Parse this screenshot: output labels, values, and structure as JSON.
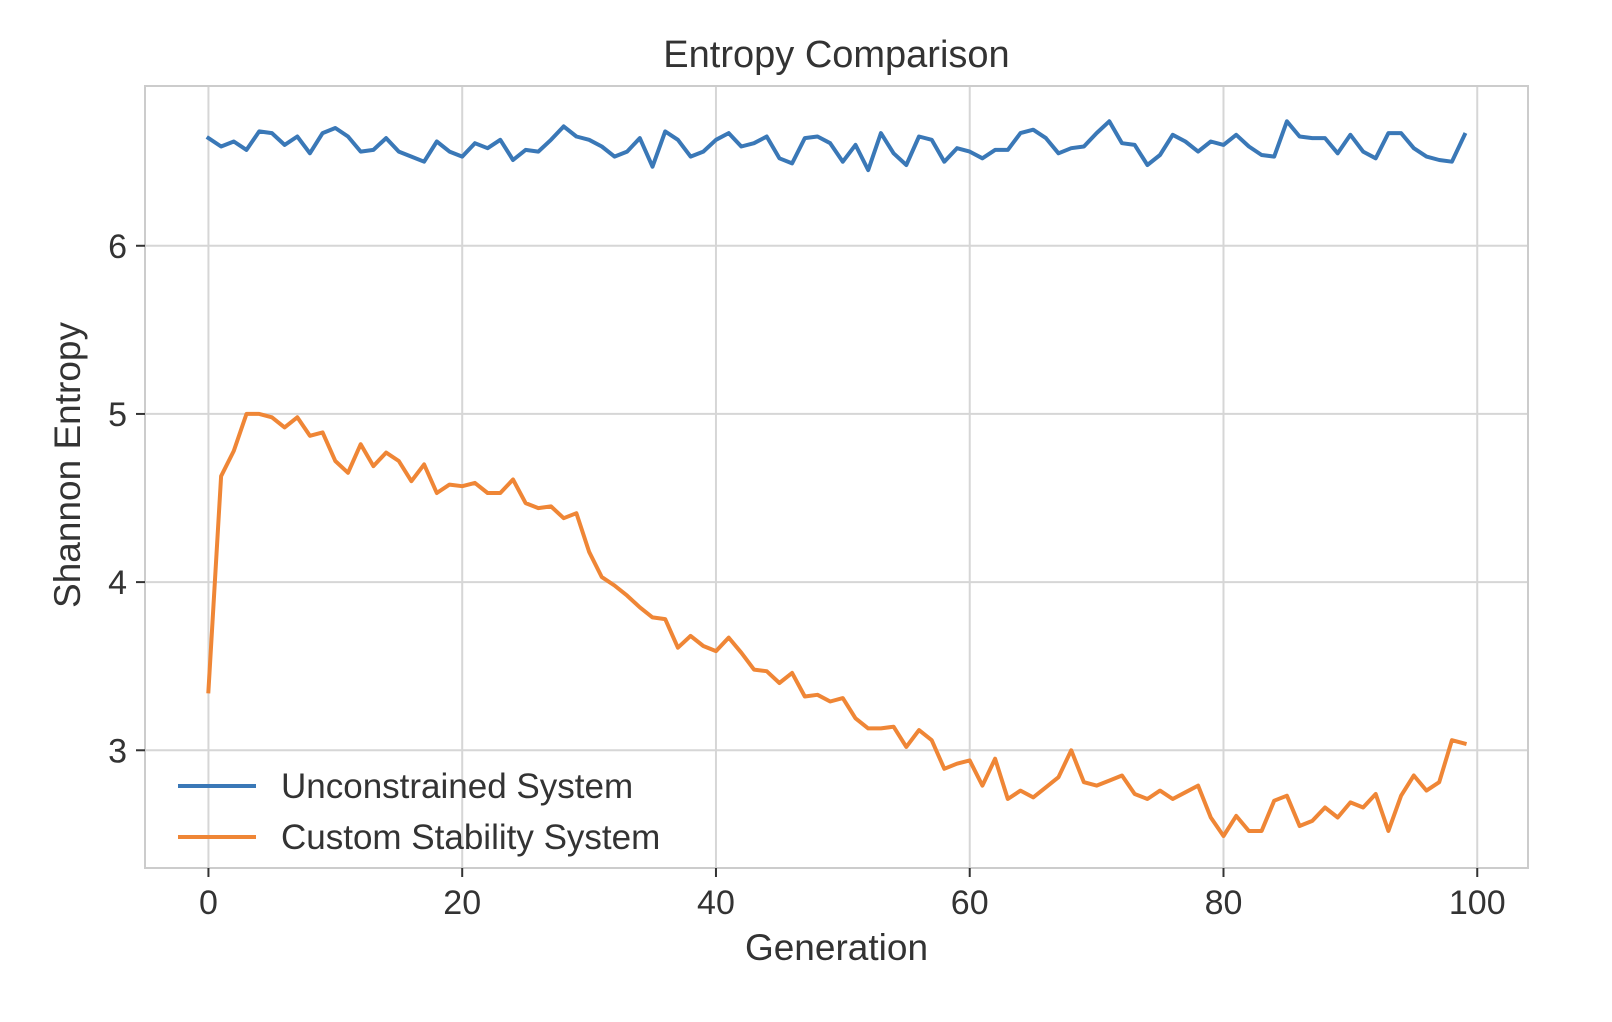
{
  "chart_data": {
    "type": "line",
    "title": "Entropy Comparison",
    "xlabel": "Generation",
    "ylabel": "Shannon Entropy",
    "xlim": [
      -5,
      104
    ],
    "ylim": [
      2.3,
      6.95
    ],
    "xticks": [
      0,
      20,
      40,
      60,
      80,
      100
    ],
    "yticks": [
      3,
      4,
      5,
      6
    ],
    "grid": true,
    "legend_position": "bottom-left",
    "series": [
      {
        "name": "Unconstrained System",
        "color": "#3a78b7",
        "x": [
          0,
          1,
          2,
          3,
          4,
          5,
          6,
          7,
          8,
          9,
          10,
          11,
          12,
          13,
          14,
          15,
          16,
          17,
          18,
          19,
          20,
          21,
          22,
          23,
          24,
          25,
          26,
          27,
          28,
          29,
          30,
          31,
          32,
          33,
          34,
          35,
          36,
          37,
          38,
          39,
          40,
          41,
          42,
          43,
          44,
          45,
          46,
          47,
          48,
          49,
          50,
          51,
          52,
          53,
          54,
          55,
          56,
          57,
          58,
          59,
          60,
          61,
          62,
          63,
          64,
          65,
          66,
          67,
          68,
          69,
          70,
          71,
          72,
          73,
          74,
          75,
          76,
          77,
          78,
          79,
          80,
          81,
          82,
          83,
          84,
          85,
          86,
          87,
          88,
          89,
          90,
          91,
          92,
          93,
          94,
          95,
          96,
          97,
          98,
          99
        ],
        "values": [
          6.64,
          6.59,
          6.62,
          6.57,
          6.68,
          6.67,
          6.6,
          6.65,
          6.55,
          6.67,
          6.7,
          6.65,
          6.56,
          6.57,
          6.64,
          6.56,
          6.53,
          6.5,
          6.62,
          6.56,
          6.53,
          6.61,
          6.58,
          6.63,
          6.51,
          6.57,
          6.56,
          6.63,
          6.71,
          6.65,
          6.63,
          6.59,
          6.53,
          6.56,
          6.64,
          6.47,
          6.68,
          6.63,
          6.53,
          6.56,
          6.63,
          6.67,
          6.59,
          6.61,
          6.65,
          6.52,
          6.49,
          6.64,
          6.65,
          6.61,
          6.5,
          6.6,
          6.45,
          6.67,
          6.55,
          6.48,
          6.65,
          6.63,
          6.5,
          6.58,
          6.56,
          6.52,
          6.57,
          6.57,
          6.67,
          6.69,
          6.64,
          6.55,
          6.58,
          6.59,
          6.67,
          6.74,
          6.61,
          6.6,
          6.48,
          6.54,
          6.66,
          6.62,
          6.56,
          6.62,
          6.6,
          6.66,
          6.59,
          6.54,
          6.53,
          6.74,
          6.65,
          6.64,
          6.64,
          6.55,
          6.66,
          6.56,
          6.52,
          6.67,
          6.67,
          6.58,
          6.53,
          6.51,
          6.5,
          6.66
        ]
      },
      {
        "name": "Custom Stability System",
        "color": "#ef8636",
        "x": [
          0,
          1,
          2,
          3,
          4,
          5,
          6,
          7,
          8,
          9,
          10,
          11,
          12,
          13,
          14,
          15,
          16,
          17,
          18,
          19,
          20,
          21,
          22,
          23,
          24,
          25,
          26,
          27,
          28,
          29,
          30,
          31,
          32,
          33,
          34,
          35,
          36,
          37,
          38,
          39,
          40,
          41,
          42,
          43,
          44,
          45,
          46,
          47,
          48,
          49,
          50,
          51,
          52,
          53,
          54,
          55,
          56,
          57,
          58,
          59,
          60,
          61,
          62,
          63,
          64,
          65,
          66,
          67,
          68,
          69,
          70,
          71,
          72,
          73,
          74,
          75,
          76,
          77,
          78,
          79,
          80,
          81,
          82,
          83,
          84,
          85,
          86,
          87,
          88,
          89,
          90,
          91,
          92,
          93,
          94,
          95,
          96,
          97,
          98,
          99
        ],
        "values": [
          3.35,
          4.63,
          4.78,
          5.0,
          5.0,
          4.98,
          4.92,
          4.98,
          4.87,
          4.89,
          4.72,
          4.65,
          4.82,
          4.69,
          4.77,
          4.72,
          4.6,
          4.7,
          4.53,
          4.58,
          4.57,
          4.59,
          4.53,
          4.53,
          4.61,
          4.47,
          4.44,
          4.45,
          4.38,
          4.41,
          4.18,
          4.03,
          3.98,
          3.92,
          3.85,
          3.79,
          3.78,
          3.61,
          3.68,
          3.62,
          3.59,
          3.67,
          3.58,
          3.48,
          3.47,
          3.4,
          3.46,
          3.32,
          3.33,
          3.29,
          3.31,
          3.19,
          3.13,
          3.13,
          3.14,
          3.02,
          3.12,
          3.06,
          2.89,
          2.92,
          2.94,
          2.79,
          2.95,
          2.71,
          2.76,
          2.72,
          2.78,
          2.84,
          3.0,
          2.81,
          2.79,
          2.82,
          2.85,
          2.74,
          2.71,
          2.76,
          2.71,
          2.75,
          2.79,
          2.6,
          2.49,
          2.61,
          2.52,
          2.52,
          2.7,
          2.73,
          2.55,
          2.58,
          2.66,
          2.6,
          2.69,
          2.66,
          2.74,
          2.52,
          2.73,
          2.85,
          2.76,
          2.81,
          3.06,
          3.04
        ]
      }
    ]
  }
}
